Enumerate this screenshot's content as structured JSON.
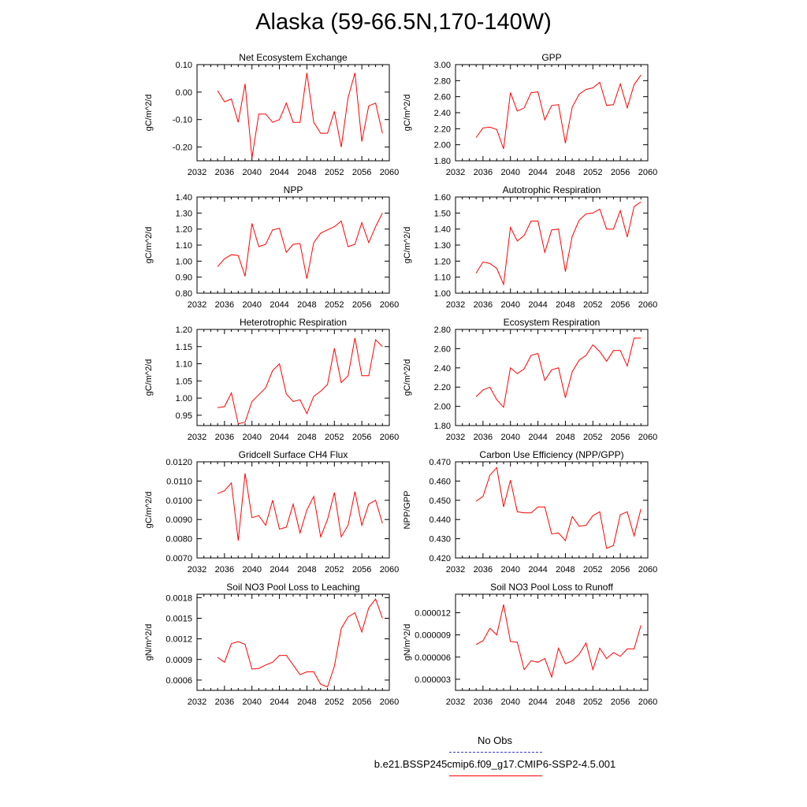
{
  "title": "Alaska (59-66.5N,170-140W)",
  "legend": {
    "obs_label": "No Obs",
    "obs_color": "#3b3bd0",
    "model_label": "b.e21.BSSP245cmip6.f09_g17.CMIP6-SSP2-4.5.001",
    "model_color": "#ff0000"
  },
  "chart_data": [
    {
      "type": "line",
      "title": "Net Ecosystem Exchange",
      "ylabel": "gC/m^2/d",
      "xlim": [
        2032,
        2060
      ],
      "ylim": [
        -0.25,
        0.1
      ],
      "xticks": [
        "2032",
        "2036",
        "2040",
        "2044",
        "2048",
        "2052",
        "2056",
        "2060"
      ],
      "yticks": [
        [
          "-0.20",
          -0.2
        ],
        [
          "-0.10",
          -0.1
        ],
        [
          "0.00",
          0.0
        ],
        [
          "0.10",
          0.1
        ]
      ],
      "x": [
        2035,
        2036,
        2037,
        2038,
        2039,
        2040,
        2041,
        2042,
        2043,
        2044,
        2045,
        2046,
        2047,
        2048,
        2049,
        2050,
        2051,
        2052,
        2053,
        2054,
        2055,
        2056,
        2057,
        2058,
        2059
      ],
      "values": [
        0.005,
        -0.035,
        -0.025,
        -0.11,
        0.03,
        -0.24,
        -0.08,
        -0.08,
        -0.11,
        -0.1,
        -0.04,
        -0.11,
        -0.11,
        0.07,
        -0.11,
        -0.15,
        -0.15,
        -0.07,
        -0.2,
        -0.02,
        0.07,
        -0.18,
        -0.05,
        -0.04,
        -0.15
      ]
    },
    {
      "type": "line",
      "title": "GPP",
      "ylabel": "gC/m^2/d",
      "xlim": [
        2032,
        2060
      ],
      "ylim": [
        1.8,
        3.0
      ],
      "xticks": [
        "2032",
        "2036",
        "2040",
        "2044",
        "2048",
        "2052",
        "2056",
        "2060"
      ],
      "yticks": [
        [
          "1.80",
          1.8
        ],
        [
          "2.00",
          2.0
        ],
        [
          "2.20",
          2.2
        ],
        [
          "2.40",
          2.4
        ],
        [
          "2.60",
          2.6
        ],
        [
          "2.80",
          2.8
        ],
        [
          "3.00",
          3.0
        ]
      ],
      "x": [
        2035,
        2036,
        2037,
        2038,
        2039,
        2040,
        2041,
        2042,
        2043,
        2044,
        2045,
        2046,
        2047,
        2048,
        2049,
        2050,
        2051,
        2052,
        2053,
        2054,
        2055,
        2056,
        2057,
        2058,
        2059
      ],
      "values": [
        2.09,
        2.21,
        2.22,
        2.19,
        1.95,
        2.65,
        2.42,
        2.46,
        2.65,
        2.66,
        2.31,
        2.49,
        2.5,
        2.02,
        2.47,
        2.63,
        2.69,
        2.71,
        2.78,
        2.49,
        2.5,
        2.76,
        2.46,
        2.75,
        2.87
      ]
    },
    {
      "type": "line",
      "title": "NPP",
      "ylabel": "gC/m^2/d",
      "xlim": [
        2032,
        2060
      ],
      "ylim": [
        0.8,
        1.4
      ],
      "xticks": [
        "2032",
        "2036",
        "2040",
        "2044",
        "2048",
        "2052",
        "2056",
        "2060"
      ],
      "yticks": [
        [
          "0.80",
          0.8
        ],
        [
          "0.90",
          0.9
        ],
        [
          "1.00",
          1.0
        ],
        [
          "1.10",
          1.1
        ],
        [
          "1.20",
          1.2
        ],
        [
          "1.30",
          1.3
        ],
        [
          "1.40",
          1.4
        ]
      ],
      "x": [
        2035,
        2036,
        2037,
        2038,
        2039,
        2040,
        2041,
        2042,
        2043,
        2044,
        2045,
        2046,
        2047,
        2048,
        2049,
        2050,
        2051,
        2052,
        2053,
        2054,
        2055,
        2056,
        2057,
        2058,
        2059
      ],
      "values": [
        0.965,
        1.015,
        1.04,
        1.035,
        0.905,
        1.235,
        1.09,
        1.105,
        1.195,
        1.205,
        1.055,
        1.105,
        1.11,
        0.89,
        1.115,
        1.175,
        1.195,
        1.215,
        1.25,
        1.09,
        1.105,
        1.24,
        1.115,
        1.215,
        1.3
      ]
    },
    {
      "type": "line",
      "title": "Autotrophic Respiration",
      "ylabel": "gC/m^2/d",
      "xlim": [
        2032,
        2060
      ],
      "ylim": [
        1.0,
        1.6
      ],
      "xticks": [
        "2032",
        "2036",
        "2040",
        "2044",
        "2048",
        "2052",
        "2056",
        "2060"
      ],
      "yticks": [
        [
          "1.00",
          1.0
        ],
        [
          "1.10",
          1.1
        ],
        [
          "1.20",
          1.2
        ],
        [
          "1.30",
          1.3
        ],
        [
          "1.40",
          1.4
        ],
        [
          "1.50",
          1.5
        ],
        [
          "1.60",
          1.6
        ]
      ],
      "x": [
        2035,
        2036,
        2037,
        2038,
        2039,
        2040,
        2041,
        2042,
        2043,
        2044,
        2045,
        2046,
        2047,
        2048,
        2049,
        2050,
        2051,
        2052,
        2053,
        2054,
        2055,
        2056,
        2057,
        2058,
        2059
      ],
      "values": [
        1.125,
        1.195,
        1.185,
        1.155,
        1.055,
        1.41,
        1.325,
        1.36,
        1.45,
        1.45,
        1.255,
        1.395,
        1.4,
        1.135,
        1.355,
        1.455,
        1.495,
        1.5,
        1.525,
        1.4,
        1.4,
        1.515,
        1.35,
        1.54,
        1.57
      ]
    },
    {
      "type": "line",
      "title": "Heterotrophic Respiration",
      "ylabel": "gC/m^2/d",
      "xlim": [
        2032,
        2060
      ],
      "ylim": [
        0.92,
        1.2
      ],
      "xticks": [
        "2032",
        "2036",
        "2040",
        "2044",
        "2048",
        "2052",
        "2056",
        "2060"
      ],
      "yticks": [
        [
          "0.95",
          0.95
        ],
        [
          "1.00",
          1.0
        ],
        [
          "1.05",
          1.05
        ],
        [
          "1.10",
          1.1
        ],
        [
          "1.15",
          1.15
        ],
        [
          "1.20",
          1.2
        ]
      ],
      "x": [
        2035,
        2036,
        2037,
        2038,
        2039,
        2040,
        2041,
        2042,
        2043,
        2044,
        2045,
        2046,
        2047,
        2048,
        2049,
        2050,
        2051,
        2052,
        2053,
        2054,
        2055,
        2056,
        2057,
        2058,
        2059
      ],
      "values": [
        0.972,
        0.975,
        1.015,
        0.925,
        0.93,
        0.99,
        1.01,
        1.03,
        1.08,
        1.1,
        1.012,
        0.99,
        0.995,
        0.955,
        1.005,
        1.02,
        1.04,
        1.145,
        1.045,
        1.065,
        1.175,
        1.065,
        1.065,
        1.17,
        1.15
      ]
    },
    {
      "type": "line",
      "title": "Ecosystem Respiration",
      "ylabel": "gC/m^2/d",
      "xlim": [
        2032,
        2060
      ],
      "ylim": [
        1.8,
        2.8
      ],
      "xticks": [
        "2032",
        "2036",
        "2040",
        "2044",
        "2048",
        "2052",
        "2056",
        "2060"
      ],
      "yticks": [
        [
          "1.80",
          1.8
        ],
        [
          "2.00",
          2.0
        ],
        [
          "2.20",
          2.2
        ],
        [
          "2.40",
          2.4
        ],
        [
          "2.60",
          2.6
        ],
        [
          "2.80",
          2.8
        ]
      ],
      "x": [
        2035,
        2036,
        2037,
        2038,
        2039,
        2040,
        2041,
        2042,
        2043,
        2044,
        2045,
        2046,
        2047,
        2048,
        2049,
        2050,
        2051,
        2052,
        2053,
        2054,
        2055,
        2056,
        2057,
        2058,
        2059
      ],
      "values": [
        2.1,
        2.17,
        2.2,
        2.07,
        1.99,
        2.4,
        2.34,
        2.39,
        2.53,
        2.55,
        2.27,
        2.38,
        2.4,
        2.09,
        2.36,
        2.48,
        2.53,
        2.64,
        2.57,
        2.47,
        2.58,
        2.58,
        2.42,
        2.71,
        2.71
      ]
    },
    {
      "type": "line",
      "title": "Gridcell Surface CH4 Flux",
      "ylabel": "gC/m^2/d",
      "xlim": [
        2032,
        2060
      ],
      "ylim": [
        0.007,
        0.012
      ],
      "xticks": [
        "2032",
        "2036",
        "2040",
        "2044",
        "2048",
        "2052",
        "2056",
        "2060"
      ],
      "yticks": [
        [
          "0.0070",
          0.007
        ],
        [
          "0.0080",
          0.008
        ],
        [
          "0.0090",
          0.009
        ],
        [
          "0.0100",
          0.01
        ],
        [
          "0.0110",
          0.011
        ],
        [
          "0.0120",
          0.012
        ]
      ],
      "x": [
        2035,
        2036,
        2037,
        2038,
        2039,
        2040,
        2041,
        2042,
        2043,
        2044,
        2045,
        2046,
        2047,
        2048,
        2049,
        2050,
        2051,
        2052,
        2053,
        2054,
        2055,
        2056,
        2057,
        2058,
        2059
      ],
      "values": [
        0.01035,
        0.0105,
        0.0109,
        0.0079,
        0.0114,
        0.0091,
        0.0092,
        0.0087,
        0.01,
        0.0085,
        0.0086,
        0.0098,
        0.0083,
        0.0095,
        0.0102,
        0.0081,
        0.009,
        0.0104,
        0.0081,
        0.0087,
        0.01045,
        0.0087,
        0.0098,
        0.01,
        0.0088
      ]
    },
    {
      "type": "line",
      "title": "Carbon Use Efficiency (NPP/GPP)",
      "ylabel": "NPP/GPP",
      "xlim": [
        2032,
        2060
      ],
      "ylim": [
        0.42,
        0.47
      ],
      "xticks": [
        "2032",
        "2036",
        "2040",
        "2044",
        "2048",
        "2052",
        "2056",
        "2060"
      ],
      "yticks": [
        [
          "0.420",
          0.42
        ],
        [
          "0.430",
          0.43
        ],
        [
          "0.440",
          0.44
        ],
        [
          "0.450",
          0.45
        ],
        [
          "0.460",
          0.46
        ],
        [
          "0.470",
          0.47
        ]
      ],
      "x": [
        2035,
        2036,
        2037,
        2038,
        2039,
        2040,
        2041,
        2042,
        2043,
        2044,
        2045,
        2046,
        2047,
        2048,
        2049,
        2050,
        2051,
        2052,
        2053,
        2054,
        2055,
        2056,
        2057,
        2058,
        2059
      ],
      "values": [
        0.4495,
        0.452,
        0.463,
        0.467,
        0.4465,
        0.4605,
        0.444,
        0.4435,
        0.4435,
        0.4465,
        0.4465,
        0.4325,
        0.433,
        0.429,
        0.4415,
        0.4365,
        0.437,
        0.442,
        0.444,
        0.425,
        0.4265,
        0.4425,
        0.444,
        0.4315,
        0.4455
      ]
    },
    {
      "type": "line",
      "title": "Soil NO3 Pool Loss to Leaching",
      "ylabel": "gN/m^2/d",
      "xlim": [
        2032,
        2060
      ],
      "ylim": [
        0.00045,
        0.00185
      ],
      "xticks": [
        "2032",
        "2036",
        "2040",
        "2044",
        "2048",
        "2052",
        "2056",
        "2060"
      ],
      "yticks": [
        [
          "0.0006",
          0.0006
        ],
        [
          "0.0009",
          0.0009
        ],
        [
          "0.0012",
          0.0012
        ],
        [
          "0.0015",
          0.0015
        ],
        [
          "0.0018",
          0.0018
        ]
      ],
      "x": [
        2035,
        2036,
        2037,
        2038,
        2039,
        2040,
        2041,
        2042,
        2043,
        2044,
        2045,
        2046,
        2047,
        2048,
        2049,
        2050,
        2051,
        2052,
        2053,
        2054,
        2055,
        2056,
        2057,
        2058,
        2059
      ],
      "values": [
        0.00093,
        0.00086,
        0.00113,
        0.00116,
        0.00112,
        0.00076,
        0.00077,
        0.00082,
        0.00086,
        0.00096,
        0.00096,
        0.00082,
        0.00068,
        0.00072,
        0.00072,
        0.00054,
        0.0005,
        0.0008,
        0.00135,
        0.00152,
        0.00158,
        0.0013,
        0.00165,
        0.00178,
        0.0015
      ]
    },
    {
      "type": "line",
      "title": "Soil NO3 Pool Loss to Runoff",
      "ylabel": "gN/m^2/d",
      "xlim": [
        2032,
        2060
      ],
      "ylim": [
        1.5e-06,
        1.45e-05
      ],
      "xticks": [
        "2032",
        "2036",
        "2040",
        "2044",
        "2048",
        "2052",
        "2056",
        "2060"
      ],
      "yticks": [
        [
          "0.000003",
          3e-06
        ],
        [
          "0.000006",
          6e-06
        ],
        [
          "0.000009",
          9e-06
        ],
        [
          "0.000012",
          1.2e-05
        ]
      ],
      "x": [
        2035,
        2036,
        2037,
        2038,
        2039,
        2040,
        2041,
        2042,
        2043,
        2044,
        2045,
        2046,
        2047,
        2048,
        2049,
        2050,
        2051,
        2052,
        2053,
        2054,
        2055,
        2056,
        2057,
        2058,
        2059
      ],
      "values": [
        7.7e-06,
        8.2e-06,
        9.9e-06,
        9e-06,
        1.31e-05,
        8.1e-06,
        8e-06,
        4.3e-06,
        5.5e-06,
        5.3e-06,
        5.8e-06,
        3.3e-06,
        7.2e-06,
        5.1e-06,
        5.5e-06,
        6.4e-06,
        7.9e-06,
        4.3e-06,
        7.2e-06,
        5.8e-06,
        6.6e-06,
        6.1e-06,
        7.1e-06,
        7.1e-06,
        1.03e-05
      ]
    }
  ]
}
